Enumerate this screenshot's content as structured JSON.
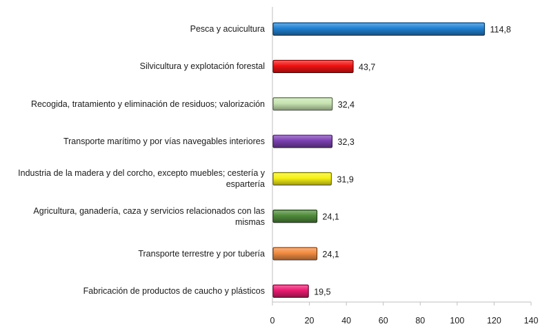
{
  "chart_data": {
    "type": "bar",
    "orientation": "horizontal",
    "categories": [
      "Pesca y acuicultura",
      "Silvicultura y explotación forestal",
      "Recogida, tratamiento y eliminación de residuos; valorización",
      "Transporte marítimo y por vías navegables interiores",
      "Industria de la madera y del corcho, excepto muebles; cestería y espartería",
      "Agricultura, ganadería, caza y servicios relacionados con las mismas",
      "Transporte terrestre y por tubería",
      "Fabricación de productos de caucho y plásticos"
    ],
    "values": [
      114.8,
      43.7,
      32.4,
      32.3,
      31.9,
      24.1,
      24.1,
      19.5
    ],
    "value_labels": [
      "114,8",
      "43,7",
      "32,4",
      "32,3",
      "31,9",
      "24,1",
      "24,1",
      "19,5"
    ],
    "colors": [
      "#1f7fd0",
      "#ee1111",
      "#c6e3b0",
      "#7a3fb0",
      "#f5f014",
      "#4e8a3a",
      "#f08a40",
      "#e8196f"
    ],
    "xlim": [
      0,
      140
    ],
    "xticks": [
      0,
      20,
      40,
      60,
      80,
      100,
      120,
      140
    ],
    "xtick_labels": [
      "0",
      "20",
      "40",
      "60",
      "80",
      "100",
      "120",
      "140"
    ],
    "title": "",
    "xlabel": "",
    "ylabel": "",
    "grid": false,
    "legend": "none"
  }
}
